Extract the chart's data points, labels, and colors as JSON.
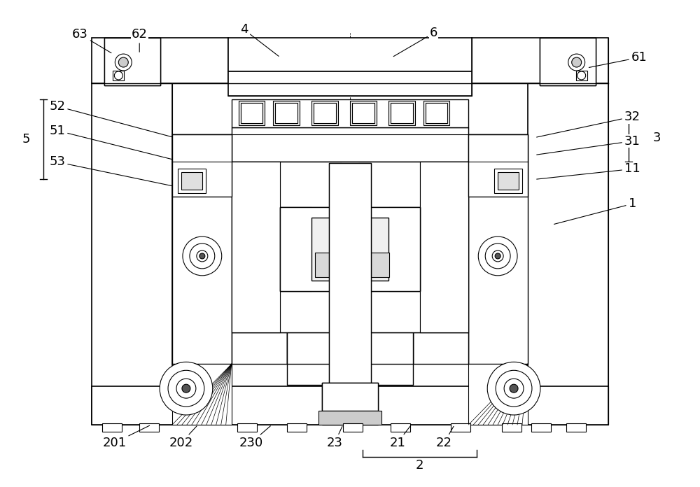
{
  "bg_color": "#ffffff",
  "lc": "#000000",
  "fig_width": 10.0,
  "fig_height": 6.96,
  "dpi": 100
}
